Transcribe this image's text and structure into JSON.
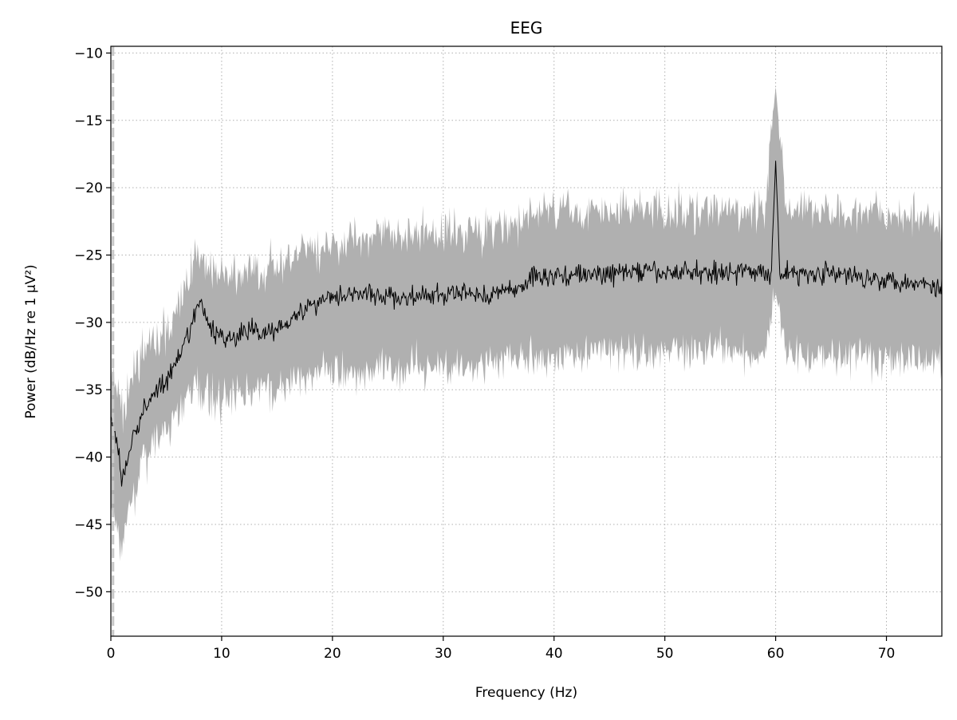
{
  "chart_data": {
    "type": "line",
    "title": "EEG",
    "xlabel": "Frequency (Hz)",
    "ylabel": "Power (dB/Hz re 1 µV²)",
    "xlim": [
      0,
      75
    ],
    "ylim": [
      -53.3,
      -9.5
    ],
    "xticks": [
      0,
      10,
      20,
      30,
      40,
      50,
      60,
      70
    ],
    "yticks": [
      -10,
      -15,
      -20,
      -25,
      -30,
      -35,
      -40,
      -45,
      -50
    ],
    "grid": true,
    "vline_x": 0.2,
    "series": [
      {
        "kind": "mean",
        "color": "#000000",
        "x": [
          0,
          0.5,
          1,
          1.5,
          2,
          3,
          4,
          5,
          6,
          7,
          7.5,
          8,
          9,
          10,
          11,
          12,
          13,
          14,
          15,
          16,
          17,
          18,
          19,
          20,
          22,
          24,
          26,
          28,
          30,
          32,
          34,
          36,
          37.5,
          38,
          40,
          42,
          44,
          46,
          48,
          50,
          52,
          54,
          56,
          58,
          59,
          59.6,
          60,
          60.4,
          61,
          62,
          64,
          66,
          68,
          70,
          72,
          74,
          75
        ],
        "y": [
          -37.5,
          -38.5,
          -41.7,
          -40.5,
          -38.5,
          -36.5,
          -35,
          -34.5,
          -33,
          -31,
          -29.5,
          -28.5,
          -30.5,
          -31,
          -31.2,
          -30.8,
          -30.5,
          -30.8,
          -30.4,
          -29.8,
          -29.3,
          -28.8,
          -28.3,
          -28,
          -27.8,
          -28,
          -28.2,
          -28.1,
          -28,
          -27.8,
          -28,
          -27.6,
          -27.2,
          -26.5,
          -26.6,
          -26.4,
          -26.5,
          -26.3,
          -26.2,
          -26.4,
          -26.2,
          -26.3,
          -26.2,
          -26.3,
          -26.2,
          -26.5,
          -18,
          -26.5,
          -26.3,
          -26.4,
          -26.3,
          -26.5,
          -26.6,
          -26.8,
          -27,
          -27.2,
          -27.5
        ]
      },
      {
        "kind": "band_upper",
        "color": "#b0b0b0",
        "x": [
          0,
          0.5,
          1,
          1.5,
          2,
          3,
          4,
          5,
          6,
          7,
          7.5,
          8,
          9,
          10,
          12,
          14,
          16,
          18,
          20,
          24,
          28,
          32,
          36,
          38,
          40,
          44,
          48,
          52,
          56,
          59,
          60,
          61,
          64,
          68,
          72,
          75
        ],
        "y": [
          -34,
          -34.5,
          -37,
          -36,
          -34,
          -32,
          -31,
          -30.5,
          -29,
          -26.5,
          -25.2,
          -24.8,
          -26,
          -26.5,
          -26.3,
          -26,
          -25.5,
          -24.8,
          -24,
          -23.5,
          -23.3,
          -23.2,
          -23,
          -22,
          -21.8,
          -21.7,
          -21.6,
          -21.6,
          -21.7,
          -21.7,
          -12.5,
          -21.7,
          -21.7,
          -21.8,
          -22,
          -22.3
        ]
      },
      {
        "kind": "band_lower",
        "color": "#b0b0b0",
        "x": [
          0,
          0.5,
          1,
          1.5,
          2,
          3,
          4,
          5,
          6,
          7,
          7.5,
          8,
          9,
          10,
          12,
          14,
          16,
          18,
          20,
          24,
          28,
          32,
          36,
          38,
          40,
          44,
          48,
          52,
          56,
          59,
          60,
          61,
          64,
          68,
          72,
          75
        ],
        "y": [
          -44,
          -45,
          -46.5,
          -44.5,
          -42.5,
          -40.5,
          -39,
          -38.5,
          -37,
          -35.5,
          -35,
          -34.8,
          -35.5,
          -35.8,
          -35.5,
          -35,
          -34.5,
          -34,
          -33.8,
          -33.6,
          -33.4,
          -33.2,
          -32.8,
          -32.5,
          -32.4,
          -32.3,
          -32.2,
          -32.2,
          -32.3,
          -32.3,
          -27.8,
          -32.3,
          -32.4,
          -32.5,
          -32.7,
          -33
        ]
      }
    ]
  }
}
